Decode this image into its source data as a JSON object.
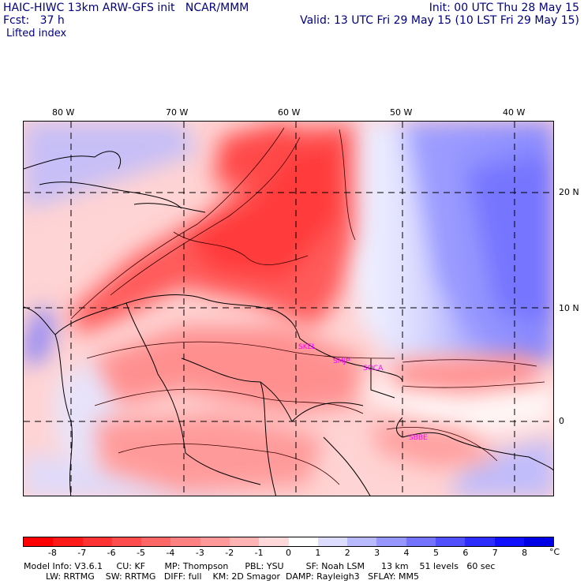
{
  "header": {
    "model_line": "HAIC-HIWC 13km ARW-GFS init   NCAR/MMM",
    "fcst_line": "Fcst:   37 h",
    "init_line": "Init: 00 UTC Thu 28 May 15",
    "valid_line": "Valid: 13 UTC Fri 29 May 15 (10 LST Fri 29 May 15)",
    "field": "Lifted index"
  },
  "longitude_labels": [
    "80 W",
    "70 W",
    "60 W",
    "50 W",
    "40 W"
  ],
  "latitude_labels": [
    "20 N",
    "10 N",
    "0"
  ],
  "stations": [
    "SKEL",
    "SMJP",
    "SOCA",
    "SBBE"
  ],
  "colorbar": {
    "tick_labels": [
      "-8",
      "-7",
      "-6",
      "-5",
      "-4",
      "-3",
      "-2",
      "-1",
      "0",
      "1",
      "2",
      "3",
      "4",
      "5",
      "6",
      "7",
      "8"
    ],
    "unit": "°C",
    "colors": [
      "#ff0000",
      "#ff1a1a",
      "#ff3333",
      "#ff4d4d",
      "#ff6666",
      "#ff8080",
      "#ff9999",
      "#ffb3b3",
      "#ffd9d9",
      "#ffffff",
      "#dcdcff",
      "#b9b9ff",
      "#9696ff",
      "#7373ff",
      "#5050ff",
      "#2d2dff",
      "#1010ff",
      "#0000e6"
    ]
  },
  "footer": {
    "line1": "Model Info: V3.6.1     CU: KF       MP: Thompson      PBL: YSU        SF: Noah LSM      13 km    51 levels   60 sec",
    "line2": "        LW: RRTMG    SW: RRTMG   DIFF: full    KM: 2D Smagor  DAMP: Rayleigh3   SFLAY: MM5"
  }
}
